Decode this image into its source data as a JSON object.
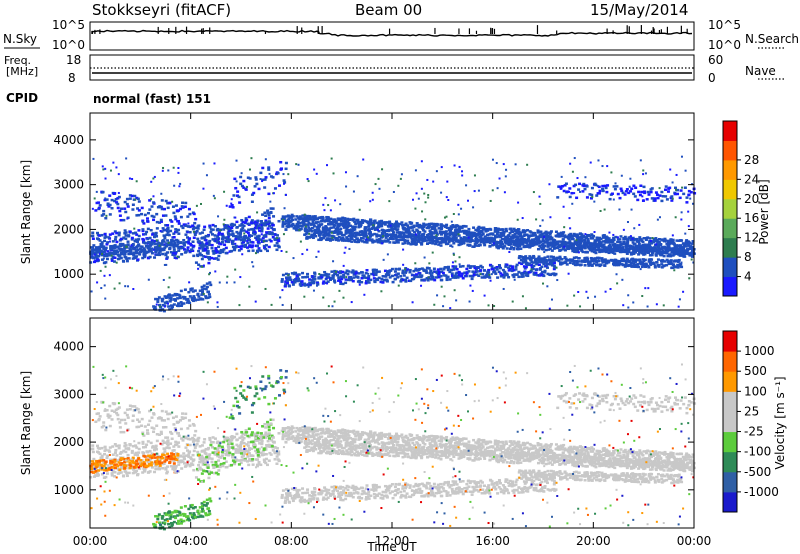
{
  "header": {
    "station": "Stokkseyri (fitACF)",
    "beam": "Beam 00",
    "date": "15/May/2014"
  },
  "noise_panel": {
    "left_label": "N.Sky",
    "right_label": "N.Search",
    "left_ticks": [
      "10^5",
      "10^0"
    ],
    "right_ticks": [
      "10^5",
      "10^0"
    ]
  },
  "freq_panel": {
    "left_label_1": "Freq.",
    "left_label_2": "[MHz]",
    "right_label": "Nave",
    "left_ticks": [
      "18",
      "8"
    ],
    "right_ticks": [
      "60",
      "0"
    ]
  },
  "cpid": {
    "label": "CPID",
    "value": "normal (fast) 151"
  },
  "colors": {
    "power_scale": [
      "#1a1aff",
      "#1f4fbf",
      "#2e7d4f",
      "#5aaa5a",
      "#a5d23c",
      "#f0c800",
      "#ff9900",
      "#ff5500",
      "#e60000"
    ],
    "velocity_scale": [
      "#1a1acc",
      "#2f5fa5",
      "#2e8b57",
      "#5ccc3c",
      "#c8c8c8",
      "#c8c8c8",
      "#ff9900",
      "#ff6600",
      "#e60000"
    ]
  },
  "chart_data": [
    {
      "type": "heatmap",
      "title": "Power",
      "xlabel": "Time UT",
      "ylabel": "Slant Range [km]",
      "x_ticks": [
        "00:00",
        "04:00",
        "08:00",
        "12:00",
        "16:00",
        "20:00",
        "00:00"
      ],
      "y_ticks": [
        "1000",
        "2000",
        "3000",
        "4000"
      ],
      "xlim": [
        0,
        24
      ],
      "ylim": [
        200,
        4600
      ],
      "colorbar_label": "Power [dB]",
      "colorbar_ticks": [
        "4",
        "8",
        "12",
        "16",
        "20",
        "24",
        "28"
      ],
      "colorbar_range": [
        0,
        30
      ]
    },
    {
      "type": "heatmap",
      "xlabel": "Time UT",
      "ylabel": "Slant Range [km]",
      "x_ticks": [
        "00:00",
        "04:00",
        "08:00",
        "12:00",
        "16:00",
        "20:00",
        "00:00"
      ],
      "y_ticks": [
        "1000",
        "2000",
        "3000",
        "4000"
      ],
      "xlim": [
        0,
        24
      ],
      "ylim": [
        200,
        4600
      ],
      "colorbar_label": "Velocity [m s⁻¹]",
      "colorbar_ticks": [
        "1000",
        "500",
        "100",
        "25",
        "-25",
        "-100",
        "-500",
        "-1000"
      ]
    }
  ]
}
